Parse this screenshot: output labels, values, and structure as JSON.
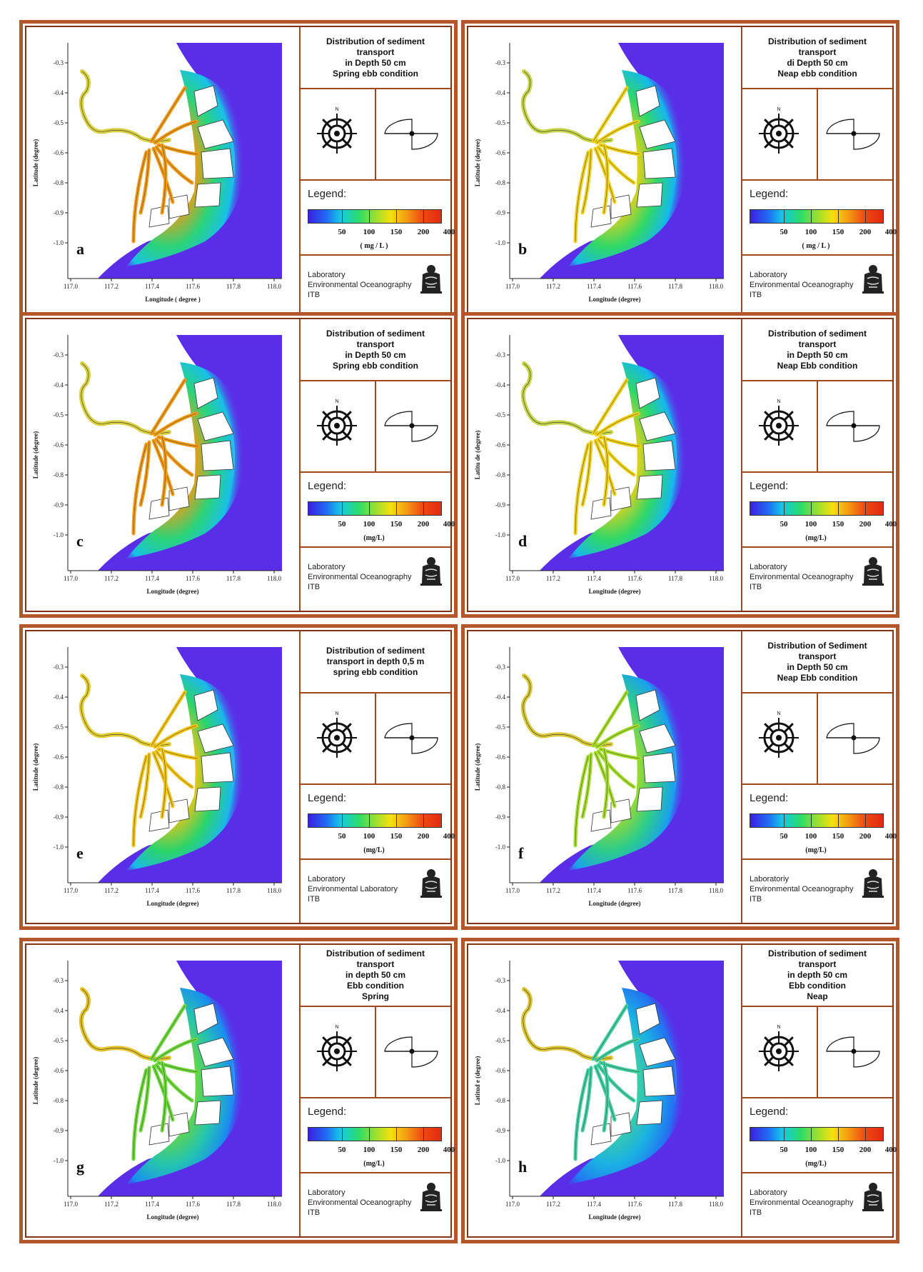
{
  "axis": {
    "x_label": "Longitude (degree)",
    "x_label_a": "Longitude ( degree )",
    "y_label": "Latitude (degree)",
    "y_label_d": "Latitu de (degree)",
    "y_label_g": "Latitude (degree)",
    "y_label_h": "Latitud e (degree)",
    "x_ticks": [
      "117.0",
      "117.2",
      "117.4",
      "117.6",
      "117.8",
      "118.0"
    ],
    "y_ticks": [
      "-0.3",
      "-0.4",
      "-0.5",
      "-0.6",
      "-0.8",
      "-0.9",
      "-1.0"
    ]
  },
  "legend": {
    "label": "Legend:",
    "unit": "( mg / L )",
    "unit_alt": "(mg/L)",
    "values_small": [
      "50",
      "100",
      "150",
      "200",
      "400"
    ],
    "values": [
      "50",
      "100",
      "150",
      "200",
      "400"
    ]
  },
  "panels": [
    {
      "letter": "a",
      "title": "Distribution of sediment\ntransport\nin Depth 50 cm\nSpring ebb condition",
      "lab": "Laboratory\nEnvironmental Oceanography\nITB",
      "intensity": "high-spring"
    },
    {
      "letter": "b",
      "title": "Distribution of sediment\ntransport\ndi Depth 50 cm\nNeap ebb condition",
      "lab": "Laboratory\nEnvironmental Oceanography\nITB",
      "intensity": "neap"
    },
    {
      "letter": "c",
      "title": "Distribution of sediment\ntransport\nin Depth 50 cm\nSpring ebb condition",
      "lab": "Laboratory\nEnvironmental Oceanography\nITB",
      "intensity": "high-spring"
    },
    {
      "letter": "d",
      "title": "Distribution of sediment\ntransport\nin Depth 50 cm\nNeap Ebb condition",
      "lab": "Laboratory\nEnvironmental Oceanography\nITB",
      "intensity": "neap"
    },
    {
      "letter": "e",
      "title": "Distribution of sediment\ntransport in depth 0,5 m\nspring ebb condition",
      "lab": "Laboratory\nEnvironmental Laboratory\nITB",
      "intensity": "mid-spring"
    },
    {
      "letter": "f",
      "title": "Distribution of  Sediment\ntransport\nin Depth 50 cm\nNeap Ebb condition",
      "lab": "Laboratoriy\nEnvironmental Oceanography\nITB",
      "intensity": "low-neap"
    },
    {
      "letter": "g",
      "title": "Distribution of sediment\ntransport\nin depth 50 cm\nEbb condition\nSpring",
      "lab": "Laboratory\nEnvironmental Oceanography\nITB",
      "intensity": "low-spring"
    },
    {
      "letter": "h",
      "title": "Distribution of sediment\ntransport\nin depth 50 cm\nEbb condition\nNeap",
      "lab": "Laboratory\nEnvironmental Oceanography\nITB",
      "intensity": "lowest"
    }
  ],
  "colors": {
    "frame": "#b5552a",
    "sea": "#5a2ee8",
    "land": "#ffffff"
  },
  "compass_label": "N"
}
